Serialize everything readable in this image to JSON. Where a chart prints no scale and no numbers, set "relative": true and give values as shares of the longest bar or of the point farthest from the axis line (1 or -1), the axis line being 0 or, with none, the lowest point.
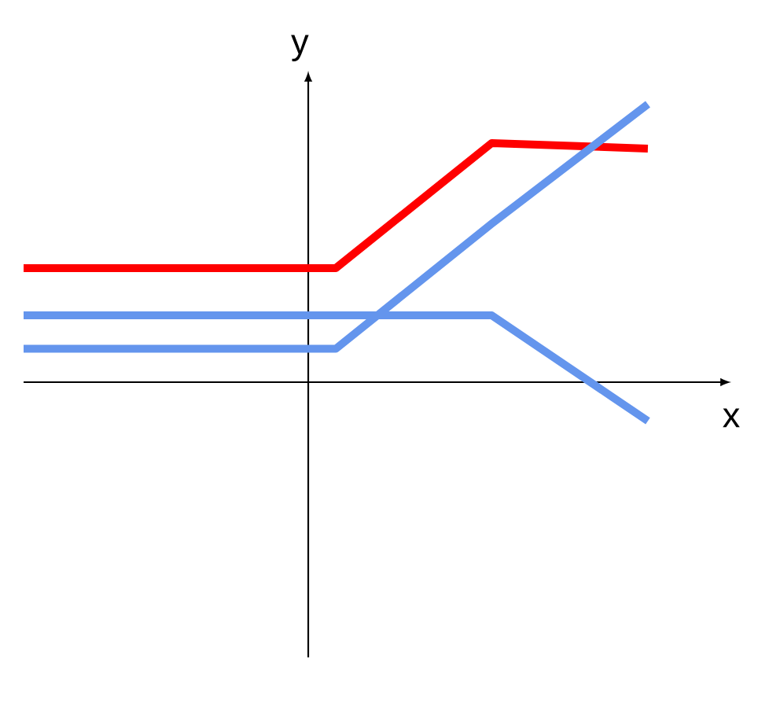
{
  "chart_data": {
    "type": "line",
    "relative": true,
    "xlabel": "x",
    "ylabel": "y",
    "categories": [
      null,
      null,
      null,
      null,
      null
    ],
    "series": [
      {
        "color": "#ff0000",
        "values": [
          0.41,
          0.41,
          0.41,
          0.86,
          0.84
        ]
      },
      {
        "color": "#6495ed",
        "values": [
          0.12,
          0.12,
          0.12,
          0.57,
          1.0
        ]
      },
      {
        "color": "#6495ed",
        "values": [
          0.24,
          0.24,
          0.24,
          0.24,
          -0.14
        ]
      }
    ]
  }
}
